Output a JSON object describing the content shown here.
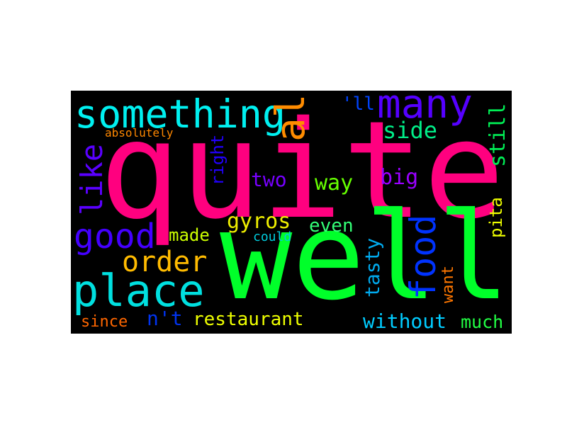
{
  "background": "#000000",
  "words": [
    {
      "key": "quite",
      "text": "quite",
      "color": "#ff007f"
    },
    {
      "key": "well",
      "text": "well",
      "color": "#00ff2a"
    },
    {
      "key": "something",
      "text": "something",
      "color": "#00f0f0"
    },
    {
      "key": "many",
      "text": "many",
      "color": "#5500ff"
    },
    {
      "key": "also",
      "text": "also",
      "color": "#ff8c00"
    },
    {
      "key": "place",
      "text": "place",
      "color": "#00e0e0"
    },
    {
      "key": "good",
      "text": "good",
      "color": "#4400ff"
    },
    {
      "key": "like",
      "text": "like",
      "color": "#5a00ff"
    },
    {
      "key": "food",
      "text": "food",
      "color": "#0033ff"
    },
    {
      "key": "order",
      "text": "order",
      "color": "#ffbb00"
    },
    {
      "key": "gyros",
      "text": "gyros",
      "color": "#eeee00"
    },
    {
      "key": "side",
      "text": "side",
      "color": "#00ee88"
    },
    {
      "key": "still",
      "text": "still",
      "color": "#00ee55"
    },
    {
      "key": "ll",
      "text": "'ll",
      "color": "#0044ff"
    },
    {
      "key": "two",
      "text": "two",
      "color": "#7700ff"
    },
    {
      "key": "way",
      "text": "way",
      "color": "#66ff00"
    },
    {
      "key": "big",
      "text": "big",
      "color": "#9900ff"
    },
    {
      "key": "right",
      "text": "right",
      "color": "#2200ff"
    },
    {
      "key": "absolutely",
      "text": "absolutely",
      "color": "#ff8800"
    },
    {
      "key": "made",
      "text": "made",
      "color": "#ccff00"
    },
    {
      "key": "even",
      "text": "even",
      "color": "#33ff77"
    },
    {
      "key": "could",
      "text": "could",
      "color": "#00ccdd"
    },
    {
      "key": "pita",
      "text": "pita",
      "color": "#eeff00"
    },
    {
      "key": "tasty",
      "text": "tasty",
      "color": "#00aaee"
    },
    {
      "key": "want",
      "text": "want",
      "color": "#ff7700"
    },
    {
      "key": "since",
      "text": "since",
      "color": "#ff6600"
    },
    {
      "key": "nt",
      "text": "n't",
      "color": "#0033ee"
    },
    {
      "key": "restaurant",
      "text": "restaurant",
      "color": "#eeff00"
    },
    {
      "key": "without",
      "text": "without",
      "color": "#00ccff"
    },
    {
      "key": "much",
      "text": "much",
      "color": "#22ff44"
    }
  ]
}
